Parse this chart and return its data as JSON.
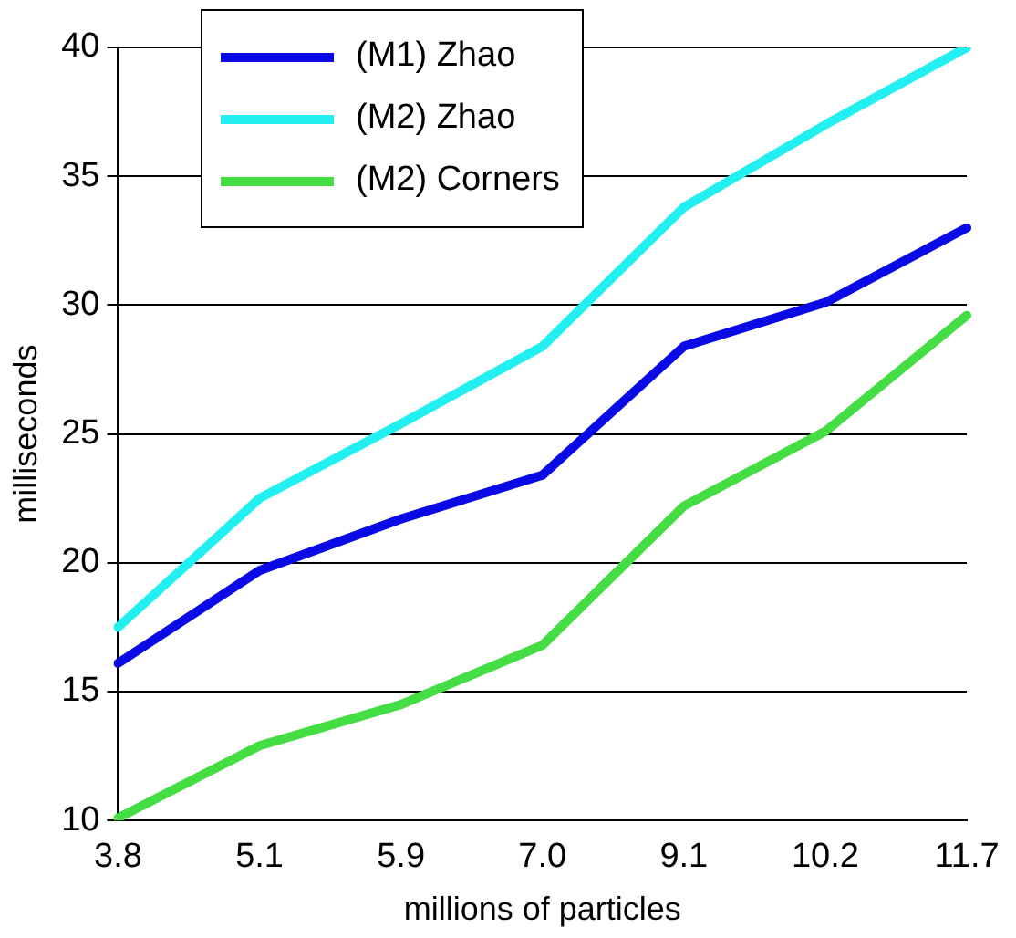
{
  "chart_data": {
    "type": "line",
    "xlabel": "millions of particles",
    "ylabel": "milliseconds",
    "categories": [
      "3.8",
      "5.1",
      "5.9",
      "7.0",
      "9.1",
      "10.2",
      "11.7"
    ],
    "series": [
      {
        "name": "(M1) Zhao",
        "color": "#0a0ae6",
        "values": [
          16.1,
          19.7,
          21.7,
          23.4,
          28.4,
          30.1,
          33.0
        ]
      },
      {
        "name": "(M2) Zhao",
        "color": "#22f0f0",
        "values": [
          17.5,
          22.5,
          25.4,
          28.4,
          33.8,
          37.0,
          40.0
        ]
      },
      {
        "name": "(M2) Corners",
        "color": "#44dd44",
        "values": [
          10.1,
          12.9,
          14.5,
          16.8,
          22.2,
          25.1,
          29.6
        ]
      }
    ],
    "ylim": [
      10,
      40
    ],
    "yticks": [
      10,
      15,
      20,
      25,
      30,
      35,
      40
    ],
    "grid": "y",
    "legend": "top left",
    "marker": "none",
    "line_style": "solid"
  }
}
